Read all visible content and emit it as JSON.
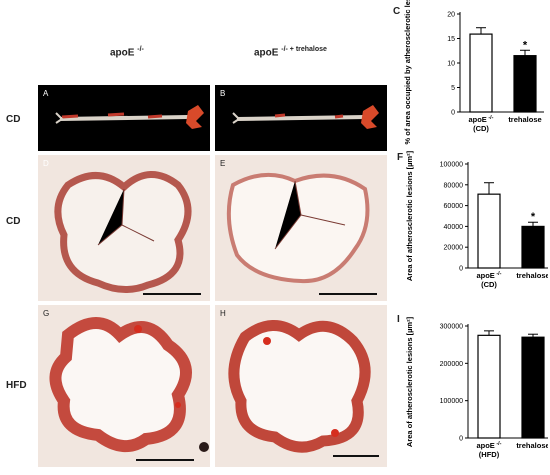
{
  "header": {
    "col1": "apoE",
    "col1_sup": "-/-",
    "col2": "apoE",
    "col2_sup": "-/- + trehalose"
  },
  "rows": {
    "r1": "CD",
    "r2": "CD",
    "r3": "HFD"
  },
  "panel_letters": [
    "A",
    "B",
    "C",
    "D",
    "E",
    "F",
    "G",
    "H",
    "I"
  ],
  "colors": {
    "bar_control_fill": "#ffffff",
    "bar_treated_fill": "#000000",
    "stain": "#c0392b"
  },
  "chart_data": [
    {
      "type": "bar",
      "panel": "C",
      "categories": [
        "apoE -/- (CD)",
        "trehalose"
      ],
      "cat_line1": [
        "apoE",
        "trehalose"
      ],
      "cat_sup": [
        "-/-",
        ""
      ],
      "cat_line2": [
        "(CD)",
        ""
      ],
      "values": [
        15.9,
        11.5
      ],
      "errors": [
        1.3,
        1.1
      ],
      "significance": [
        "",
        "*"
      ],
      "ylabel": "% of area occupied by atherosclerotic lesions",
      "ylim": [
        0,
        20
      ],
      "yticks": [
        0,
        5,
        10,
        15,
        20
      ],
      "ytick_labels": [
        "0",
        "5",
        "10",
        "15",
        "20"
      ]
    },
    {
      "type": "bar",
      "panel": "F",
      "categories": [
        "apoE -/- (CD)",
        "trehalose"
      ],
      "cat_line1": [
        "apoE",
        "trehalose"
      ],
      "cat_sup": [
        "-/-",
        ""
      ],
      "cat_line2": [
        "(CD)",
        ""
      ],
      "values": [
        71000,
        40000
      ],
      "errors": [
        11000,
        4000
      ],
      "significance": [
        "",
        "*"
      ],
      "ylabel": "Area of atherosclerotic lesions [µm²]",
      "ylim": [
        0,
        100000
      ],
      "yticks": [
        0,
        20000,
        40000,
        60000,
        80000,
        100000
      ],
      "ytick_labels": [
        "0",
        "20000",
        "40000",
        "60000",
        "80000",
        "100000"
      ]
    },
    {
      "type": "bar",
      "panel": "I",
      "categories": [
        "apoE -/- (HFD)",
        "trehalose"
      ],
      "cat_line1": [
        "apoE",
        "trehalose"
      ],
      "cat_sup": [
        "-/-",
        ""
      ],
      "cat_line2": [
        "(HFD)",
        ""
      ],
      "values": [
        275000,
        270000
      ],
      "errors": [
        12000,
        8000
      ],
      "significance": [
        "",
        ""
      ],
      "ylabel": "Area of atherosclerotic lesions [µm²]",
      "ylim": [
        0,
        300000
      ],
      "yticks": [
        0,
        100000,
        200000,
        300000
      ],
      "ytick_labels": [
        "0",
        "100000",
        "200000",
        "300000"
      ]
    }
  ]
}
